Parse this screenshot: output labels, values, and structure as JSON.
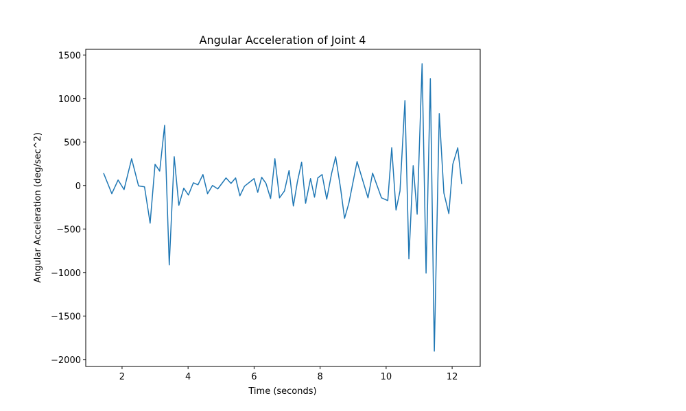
{
  "chart_data": {
    "type": "line",
    "title": "Angular Acceleration of Joint 4",
    "x_label": "Time (seconds)",
    "y_label": "Angular Acceleration (deg/sec^2)",
    "xlim": [
      0.9,
      12.85
    ],
    "ylim": [
      -2080,
      1565
    ],
    "xticks": [
      2,
      4,
      6,
      8,
      10,
      12
    ],
    "yticks": [
      {
        "value": -2000,
        "label": "−2000"
      },
      {
        "value": -1500,
        "label": "−1500"
      },
      {
        "value": -1000,
        "label": "−1000"
      },
      {
        "value": -500,
        "label": "−500"
      },
      0,
      500,
      1000,
      1500
    ],
    "grid": false,
    "series": [
      {
        "color": "#1f77b4",
        "x": [
          1.44,
          1.69,
          1.88,
          2.06,
          2.29,
          2.5,
          2.68,
          2.85,
          3.0,
          3.14,
          3.29,
          3.43,
          3.58,
          3.72,
          3.87,
          4.01,
          4.16,
          4.3,
          4.45,
          4.59,
          4.74,
          4.9,
          5.15,
          5.3,
          5.44,
          5.57,
          5.71,
          6.0,
          6.11,
          6.23,
          6.36,
          6.5,
          6.63,
          6.77,
          6.92,
          7.06,
          7.19,
          7.31,
          7.44,
          7.56,
          7.71,
          7.83,
          7.93,
          8.06,
          8.2,
          8.35,
          8.47,
          8.62,
          8.74,
          8.87,
          9.12,
          9.45,
          9.59,
          9.86,
          10.05,
          10.17,
          10.3,
          10.42,
          10.57,
          10.69,
          10.82,
          10.94,
          11.09,
          11.21,
          11.34,
          11.46,
          11.61,
          11.75,
          11.9,
          12.02,
          12.17,
          12.29
        ],
        "values": [
          142,
          -94,
          63,
          -47,
          307,
          -5,
          -15,
          -433,
          244,
          165,
          692,
          -913,
          330,
          -228,
          -31,
          -110,
          31,
          8,
          126,
          -94,
          0,
          -39,
          87,
          24,
          87,
          -118,
          -8,
          79,
          -79,
          94,
          24,
          -150,
          307,
          -142,
          -63,
          173,
          -236,
          39,
          268,
          -205,
          79,
          -134,
          87,
          126,
          -157,
          142,
          330,
          -31,
          -378,
          -205,
          275,
          -142,
          142,
          -142,
          -173,
          433,
          -283,
          -63,
          976,
          -842,
          228,
          -330,
          1400,
          -1007,
          1227,
          -1904,
          826,
          -87,
          -323,
          244,
          433,
          16
        ]
      }
    ]
  }
}
